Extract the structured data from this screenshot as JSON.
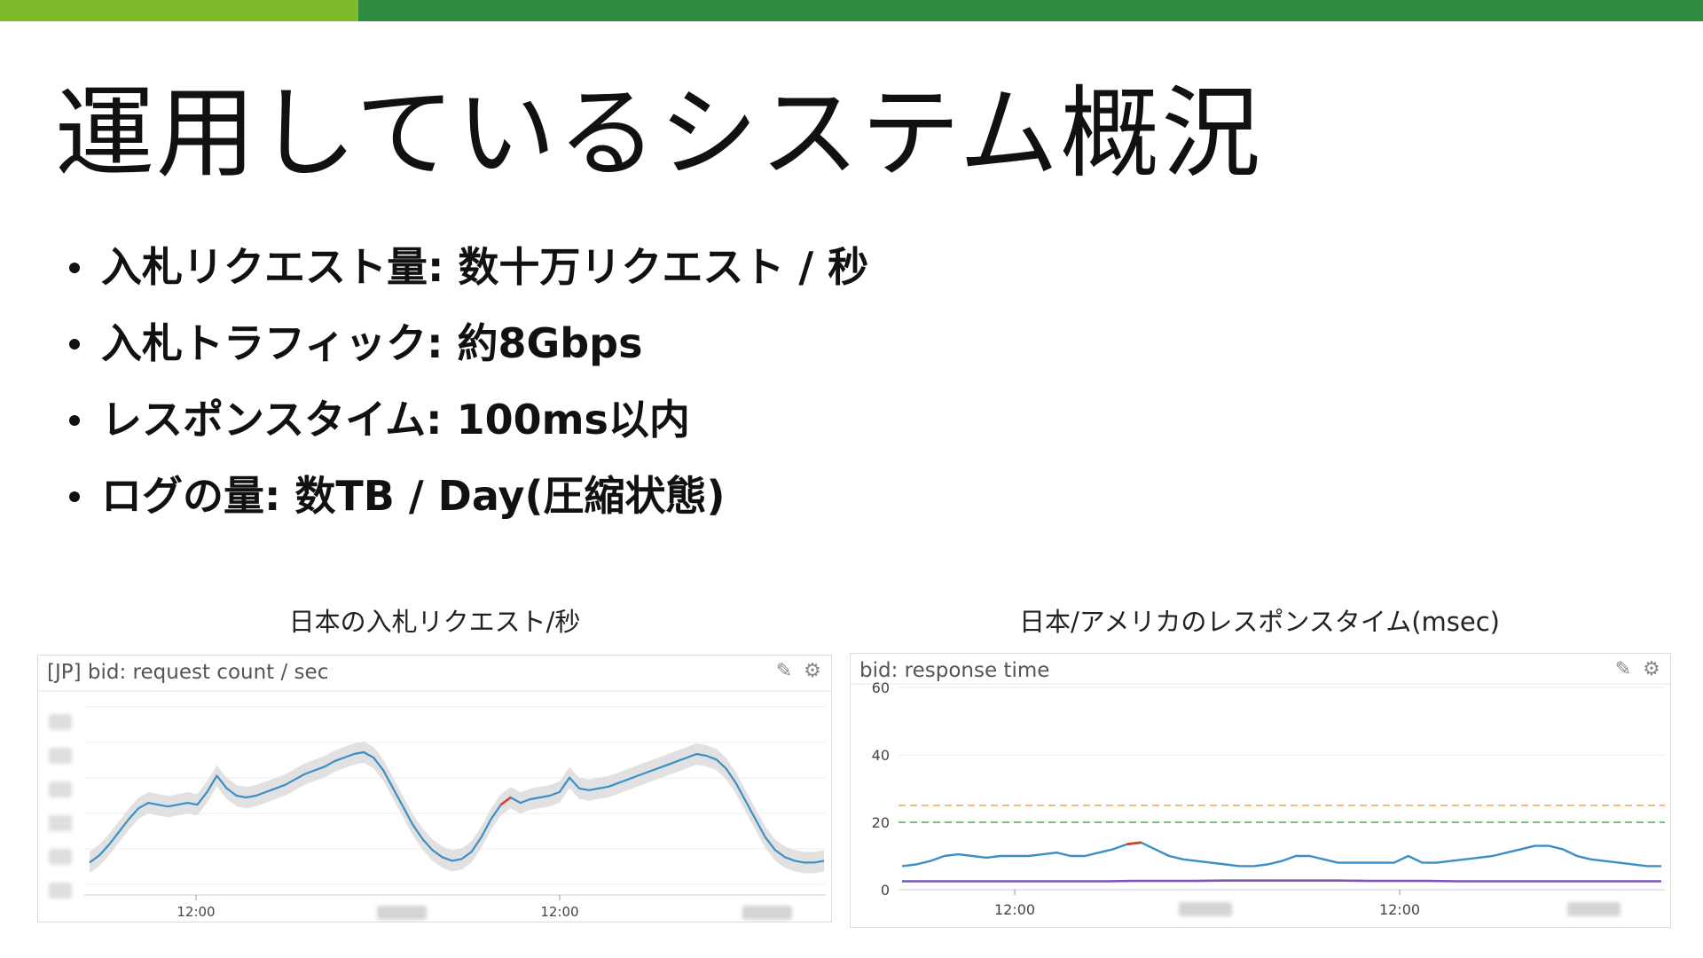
{
  "colors": {
    "bar_light": "#7dbb2d",
    "bar_dark": "#2e8b3d",
    "series_blue": "#3a8fc6",
    "band_gray": "#d9d9d9",
    "anomaly_red": "#d9412b",
    "threshold_orange": "#f0a44a",
    "threshold_green": "#5aa55a",
    "series_purple": "#7a56b8"
  },
  "slide": {
    "title": "運用しているシステム概況",
    "bullets": [
      "入札リクエスト量: 数十万リクエスト / 秒",
      "入札トラフィック: 約8Gbps",
      "レスポンスタイム: 100ms以内",
      "ログの量: 数TB / Day(圧縮状態)"
    ]
  },
  "left_chart": {
    "caption": "日本の入札リクエスト/秒",
    "panel_title": "[JP] bid: request count / sec",
    "edit_icon": "pencil-icon",
    "settings_icon": "gear-icon",
    "x_ticks": [
      "12:00",
      "12:00"
    ]
  },
  "right_chart": {
    "caption": "日本/アメリカのレスポンスタイム(msec)",
    "panel_title": "bid: response time",
    "edit_icon": "pencil-icon",
    "settings_icon": "gear-icon",
    "x_ticks": [
      "12:00",
      "12:00"
    ],
    "y_ticks": [
      "60",
      "40",
      "20",
      "0"
    ]
  },
  "chart_data": [
    {
      "type": "line",
      "title": "[JP] bid: request count / sec",
      "x_tick_labels": [
        "12:00",
        "12:00"
      ],
      "series": [
        {
          "values": [
            0.14,
            0.18,
            0.24,
            0.31,
            0.38,
            0.44,
            0.47,
            0.46,
            0.45,
            0.46,
            0.47,
            0.46,
            0.53,
            0.62,
            0.55,
            0.51,
            0.5,
            0.51,
            0.53,
            0.55,
            0.57,
            0.6,
            0.63,
            0.65,
            0.67,
            0.7,
            0.72,
            0.74,
            0.75,
            0.72,
            0.65,
            0.55,
            0.45,
            0.35,
            0.27,
            0.21,
            0.17,
            0.15,
            0.16,
            0.2,
            0.28,
            0.38,
            0.46,
            0.5,
            0.47,
            0.49,
            0.5,
            0.51,
            0.53,
            0.61,
            0.55,
            0.54,
            0.55,
            0.56,
            0.58,
            0.6,
            0.62,
            0.64,
            0.66,
            0.68,
            0.7,
            0.72,
            0.74,
            0.73,
            0.71,
            0.66,
            0.58,
            0.48,
            0.38,
            0.28,
            0.21,
            0.17,
            0.15,
            0.14,
            0.14,
            0.15
          ]
        }
      ]
    },
    {
      "type": "line",
      "title": "bid: response time",
      "ylim": [
        0,
        60
      ],
      "y_ticks": [
        0,
        20,
        40,
        60
      ],
      "x_tick_labels": [
        "12:00",
        "12:00"
      ],
      "thresholds": [
        25,
        20
      ],
      "series": [
        {
          "values": [
            7,
            7.5,
            8.5,
            10,
            10.5,
            10,
            9.5,
            10,
            10,
            10,
            10.5,
            11,
            10,
            10,
            11,
            12,
            13.5,
            14,
            12,
            10,
            9,
            8.5,
            8,
            7.5,
            7,
            7,
            7.5,
            8.5,
            10,
            10,
            9,
            8,
            8,
            8,
            8,
            8,
            10,
            8,
            8,
            8.5,
            9,
            9.5,
            10,
            11,
            12,
            13,
            13,
            12,
            10,
            9,
            8.5,
            8,
            7.5,
            7,
            7
          ]
        },
        {
          "values": [
            2.5,
            2.5,
            2.5,
            2.5,
            2.5,
            2.5,
            2.5,
            2.5,
            2.6,
            2.6,
            2.6,
            2.7,
            2.7,
            2.7,
            2.7,
            2.7,
            2.6,
            2.6,
            2.6,
            2.5,
            2.5,
            2.5,
            2.5,
            2.5,
            2.5,
            2.5,
            2.5
          ]
        }
      ]
    }
  ]
}
